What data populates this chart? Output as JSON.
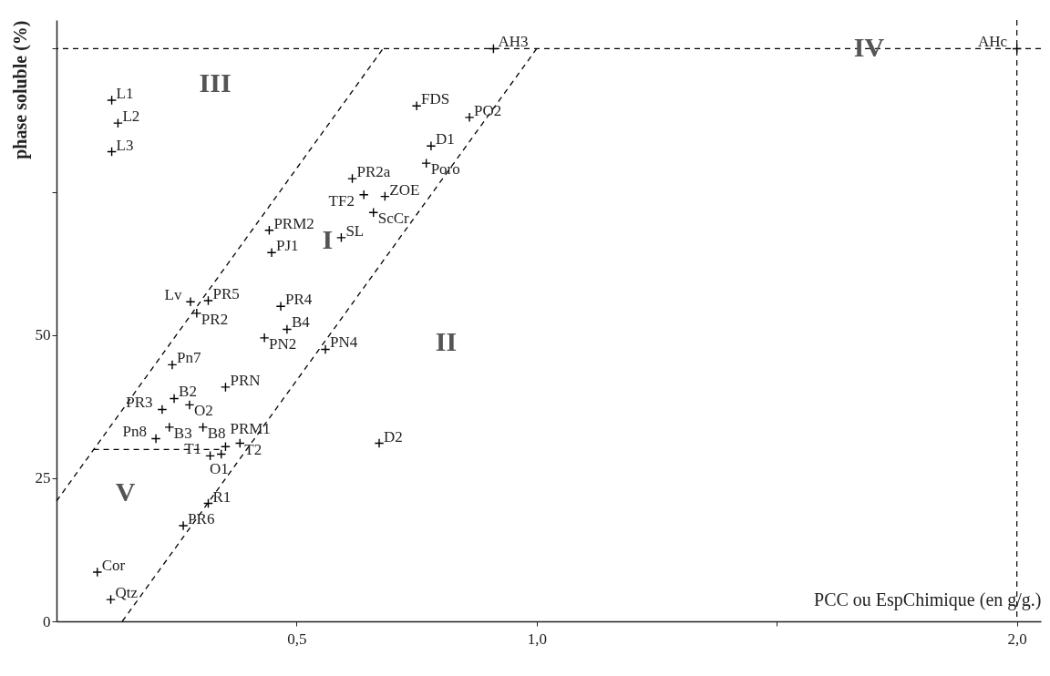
{
  "chart_data": {
    "type": "scatter",
    "xlabel": "PCC ou EspChimique (en g/g.)",
    "ylabel": "phase soluble (%)",
    "xlim": [
      0,
      2.05
    ],
    "ylim": [
      0,
      105
    ],
    "xticks": [
      {
        "value": 0.5,
        "label": "0,5"
      },
      {
        "value": 1,
        "label": "1,0"
      },
      {
        "value": 1.5,
        "label": null
      },
      {
        "value": 2,
        "label": "2,0"
      }
    ],
    "yticks": [
      0,
      25,
      50,
      {
        "value": 75,
        "label": null
      },
      {
        "value": 100,
        "label": null
      }
    ],
    "grid": false,
    "marker": "cross",
    "line_style": "dashed",
    "series": [
      {
        "color": "#000000",
        "x": [
          0.115,
          0.128,
          0.115,
          0.91,
          2.0,
          0.75,
          0.86,
          0.78,
          0.77,
          0.616,
          0.64,
          0.684,
          0.66,
          0.593,
          0.443,
          0.448,
          0.467,
          0.48,
          0.433,
          0.56,
          0.279,
          0.316,
          0.292,
          0.241,
          0.245,
          0.277,
          0.22,
          0.352,
          0.305,
          0.235,
          0.207,
          0.352,
          0.382,
          0.32,
          0.343,
          0.316,
          0.264,
          0.085,
          0.113,
          0.672
        ],
        "values": [
          91,
          87,
          82,
          100,
          100,
          90,
          88,
          83,
          80,
          77.3,
          74.5,
          74.2,
          71.4,
          67,
          68.3,
          64.4,
          55,
          51,
          49.5,
          47.5,
          55.8,
          56,
          53.8,
          44.8,
          38.9,
          37.8,
          37,
          40.9,
          33.9,
          33.9,
          31.9,
          30.5,
          31.1,
          28.9,
          29.2,
          20.6,
          16.7,
          8.6,
          3.8,
          31.1
        ]
      },
      {
        "type": "line",
        "marker": "none",
        "color": "#000000",
        "x": [
          0,
          0.68
        ],
        "values": [
          21,
          100
        ]
      },
      {
        "type": "line",
        "marker": "none",
        "color": "#000000",
        "x": [
          0.137,
          1.0
        ],
        "values": [
          0,
          100
        ]
      },
      {
        "type": "line",
        "marker": "none",
        "color": "#000000",
        "x": [
          0.077,
          0.34
        ],
        "values": [
          30,
          30
        ]
      }
    ],
    "ref_lines": [
      {
        "axis": "y",
        "value": 100,
        "color": "#000000",
        "line_style": "dashed"
      },
      {
        "axis": "x",
        "value": 2,
        "color": "#000000",
        "line_style": "dashed"
      }
    ],
    "annotations": [
      {
        "text": "L1",
        "x": 0.115,
        "y": 91
      },
      {
        "text": "L2",
        "x": 0.128,
        "y": 87
      },
      {
        "text": "L3",
        "x": 0.115,
        "y": 82
      },
      {
        "text": "AH3",
        "x": 0.91,
        "y": 100
      },
      {
        "text": "AHc",
        "x": 2.0,
        "y": 100
      },
      {
        "text": "FDS",
        "x": 0.75,
        "y": 90
      },
      {
        "text": "PO2",
        "x": 0.86,
        "y": 88
      },
      {
        "text": "D1",
        "x": 0.78,
        "y": 83
      },
      {
        "text": "Poro",
        "x": 0.77,
        "y": 80
      },
      {
        "text": "PR2a",
        "x": 0.616,
        "y": 77.3
      },
      {
        "text": "TF2",
        "x": 0.64,
        "y": 74.5
      },
      {
        "text": "ZOE",
        "x": 0.684,
        "y": 74.2
      },
      {
        "text": "ScCr",
        "x": 0.66,
        "y": 71.4
      },
      {
        "text": "SL",
        "x": 0.593,
        "y": 67
      },
      {
        "text": "PRM2",
        "x": 0.443,
        "y": 68.3
      },
      {
        "text": "PJ1",
        "x": 0.448,
        "y": 64.4
      },
      {
        "text": "PR4",
        "x": 0.467,
        "y": 55
      },
      {
        "text": "B4",
        "x": 0.48,
        "y": 51
      },
      {
        "text": "PN2",
        "x": 0.433,
        "y": 49.5
      },
      {
        "text": "PN4",
        "x": 0.56,
        "y": 47.5
      },
      {
        "text": "Lv",
        "x": 0.279,
        "y": 55.8
      },
      {
        "text": "PR5",
        "x": 0.316,
        "y": 56
      },
      {
        "text": "PR2",
        "x": 0.292,
        "y": 53.8
      },
      {
        "text": "Pn7",
        "x": 0.241,
        "y": 44.8
      },
      {
        "text": "B2",
        "x": 0.245,
        "y": 38.9
      },
      {
        "text": "O2",
        "x": 0.277,
        "y": 37.8
      },
      {
        "text": "PR3",
        "x": 0.22,
        "y": 37
      },
      {
        "text": "PRN",
        "x": 0.352,
        "y": 40.9
      },
      {
        "text": "B8",
        "x": 0.305,
        "y": 33.9
      },
      {
        "text": "B3",
        "x": 0.235,
        "y": 33.9
      },
      {
        "text": "Pn8",
        "x": 0.207,
        "y": 31.9
      },
      {
        "text": "PRM1",
        "x": 0.352,
        "y": 30.5
      },
      {
        "text": "T2",
        "x": 0.382,
        "y": 31.1
      },
      {
        "text": "T1",
        "x": 0.32,
        "y": 28.9
      },
      {
        "text": "O1",
        "x": 0.343,
        "y": 29.2
      },
      {
        "text": "R1",
        "x": 0.316,
        "y": 20.6
      },
      {
        "text": "PR6",
        "x": 0.264,
        "y": 16.7
      },
      {
        "text": "Cor",
        "x": 0.085,
        "y": 8.6
      },
      {
        "text": "Qtz",
        "x": 0.113,
        "y": 3.8
      },
      {
        "text": "D2",
        "x": 0.672,
        "y": 31.1
      },
      "I",
      "II",
      "III",
      "IV",
      "V"
    ]
  }
}
